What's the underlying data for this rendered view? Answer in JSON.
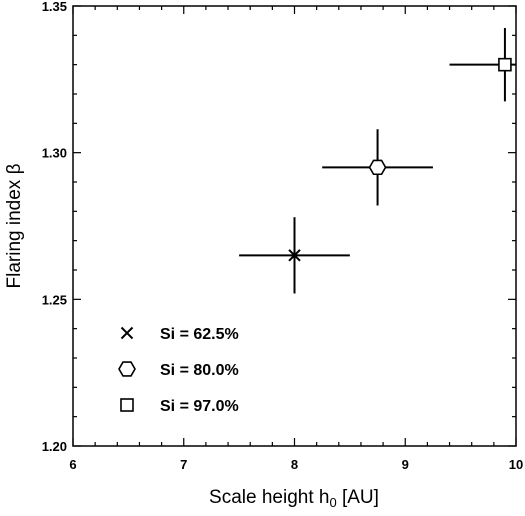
{
  "chart_data": {
    "type": "scatter",
    "title": "",
    "xlabel": "Scale height h",
    "xlabel_sub": "0",
    "xlabel_unit": " [AU]",
    "ylabel": "Flaring index β",
    "xlim": [
      6,
      10
    ],
    "ylim": [
      1.2,
      1.35
    ],
    "xticks": [
      6,
      7,
      8,
      9,
      10
    ],
    "xtick_labels": [
      "6",
      "7",
      "8",
      "9",
      "10"
    ],
    "yticks": [
      1.2,
      1.25,
      1.3,
      1.35
    ],
    "ytick_labels": [
      "1.20",
      "1.25",
      "1.30",
      "1.35"
    ],
    "grid": false,
    "legend_position": "bottom-left",
    "series": [
      {
        "name": "Si = 62.5%",
        "marker": "cross",
        "x": 8.0,
        "y": 1.265,
        "x_err": 0.5,
        "y_err": 0.013
      },
      {
        "name": "Si = 80.0%",
        "marker": "hexagon",
        "x": 8.75,
        "y": 1.295,
        "x_err": 0.5,
        "y_err": 0.013
      },
      {
        "name": "Si = 97.0%",
        "marker": "square",
        "x": 9.9,
        "y": 1.33,
        "x_err": 0.5,
        "y_err": 0.0125
      }
    ],
    "colors": {
      "axes": "#000000",
      "markers": "#000000",
      "marker_fill": "#ffffff"
    }
  }
}
